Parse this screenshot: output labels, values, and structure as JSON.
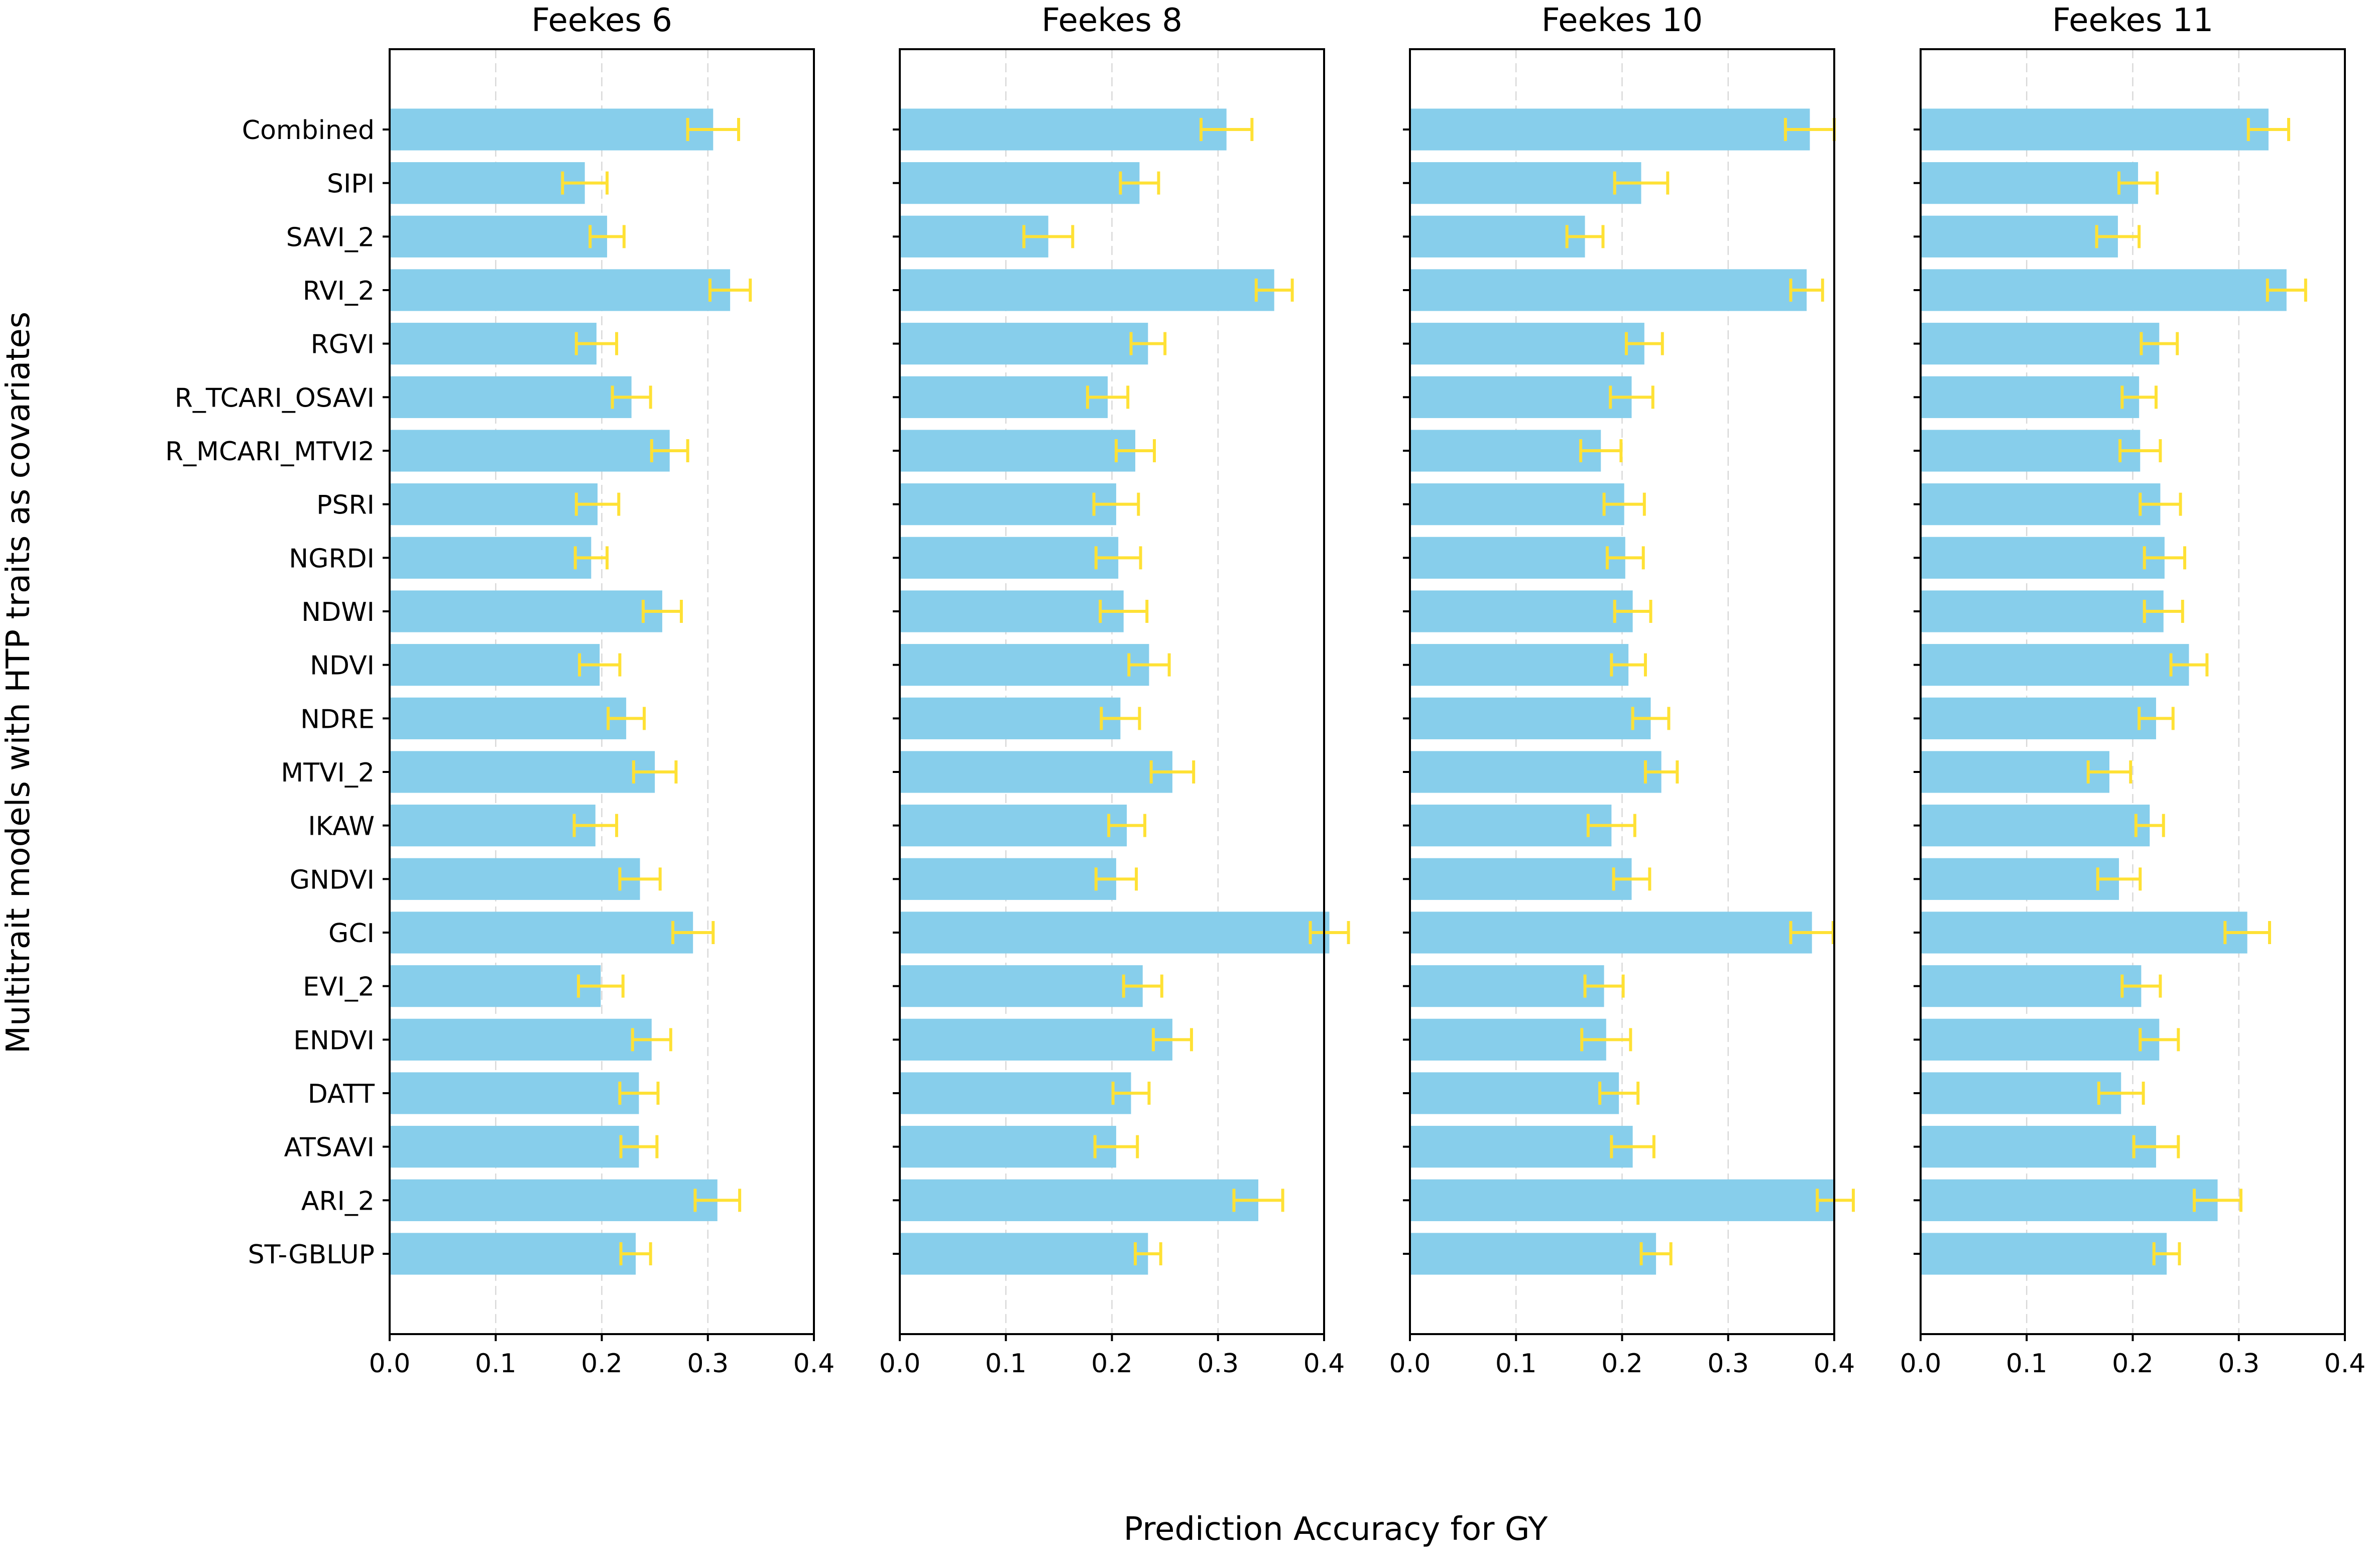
{
  "chart_data": {
    "type": "bar",
    "orientation": "horizontal",
    "xlabel": "Prediction Accuracy for GY",
    "ylabel": "Multitrait models with HTP traits as covariates",
    "xlim": [
      0.0,
      0.4
    ],
    "xticks": [
      0.0,
      0.1,
      0.2,
      0.3,
      0.4
    ],
    "xtick_labels": [
      "0.0",
      "0.1",
      "0.2",
      "0.3",
      "0.4"
    ],
    "grid": "x dashed",
    "categories": [
      "Combined",
      "SIPI",
      "SAVI_2",
      "RVI_2",
      "RGVI",
      "R_TCARI_OSAVI",
      "R_MCARI_MTVI2",
      "PSRI",
      "NGRDI",
      "NDWI",
      "NDVI",
      "NDRE",
      "MTVI_2",
      "IKAW",
      "GNDVI",
      "GCI",
      "EVI_2",
      "ENDVI",
      "DATT",
      "ATSAVI",
      "ARI_2",
      "ST-GBLUP"
    ],
    "series": [
      {
        "name": "Feekes 6",
        "values": [
          0.305,
          0.184,
          0.205,
          0.321,
          0.195,
          0.228,
          0.264,
          0.196,
          0.19,
          0.257,
          0.198,
          0.223,
          0.25,
          0.194,
          0.236,
          0.286,
          0.199,
          0.247,
          0.235,
          0.235,
          0.309,
          0.232
        ],
        "errors": [
          0.024,
          0.021,
          0.016,
          0.019,
          0.019,
          0.018,
          0.017,
          0.02,
          0.015,
          0.018,
          0.019,
          0.017,
          0.02,
          0.02,
          0.019,
          0.019,
          0.021,
          0.018,
          0.018,
          0.017,
          0.021,
          0.014
        ]
      },
      {
        "name": "Feekes 8",
        "values": [
          0.308,
          0.226,
          0.14,
          0.353,
          0.234,
          0.196,
          0.222,
          0.204,
          0.206,
          0.211,
          0.235,
          0.208,
          0.257,
          0.214,
          0.204,
          0.405,
          0.229,
          0.257,
          0.218,
          0.204,
          0.338,
          0.234
        ],
        "errors": [
          0.024,
          0.018,
          0.023,
          0.017,
          0.016,
          0.019,
          0.018,
          0.021,
          0.021,
          0.022,
          0.019,
          0.018,
          0.02,
          0.017,
          0.019,
          0.018,
          0.018,
          0.018,
          0.017,
          0.02,
          0.023,
          0.012
        ]
      },
      {
        "name": "Feekes 10",
        "values": [
          0.377,
          0.218,
          0.165,
          0.374,
          0.221,
          0.209,
          0.18,
          0.202,
          0.203,
          0.21,
          0.206,
          0.227,
          0.237,
          0.19,
          0.209,
          0.379,
          0.183,
          0.185,
          0.197,
          0.21,
          0.401,
          0.232
        ],
        "errors": [
          0.023,
          0.025,
          0.017,
          0.015,
          0.017,
          0.02,
          0.019,
          0.019,
          0.017,
          0.017,
          0.016,
          0.017,
          0.015,
          0.022,
          0.017,
          0.02,
          0.018,
          0.023,
          0.018,
          0.02,
          0.017,
          0.014
        ]
      },
      {
        "name": "Feekes 11",
        "values": [
          0.328,
          0.205,
          0.186,
          0.345,
          0.225,
          0.206,
          0.207,
          0.226,
          0.23,
          0.229,
          0.253,
          0.222,
          0.178,
          0.216,
          0.187,
          0.308,
          0.208,
          0.225,
          0.189,
          0.222,
          0.28,
          0.232
        ],
        "errors": [
          0.019,
          0.018,
          0.02,
          0.018,
          0.017,
          0.016,
          0.019,
          0.019,
          0.019,
          0.018,
          0.017,
          0.016,
          0.02,
          0.013,
          0.02,
          0.021,
          0.018,
          0.018,
          0.021,
          0.021,
          0.022,
          0.012
        ]
      }
    ],
    "colors": {
      "bar": "#87ceeb",
      "error_bar": "#ffe135",
      "grid": "#d9d9d9"
    }
  }
}
